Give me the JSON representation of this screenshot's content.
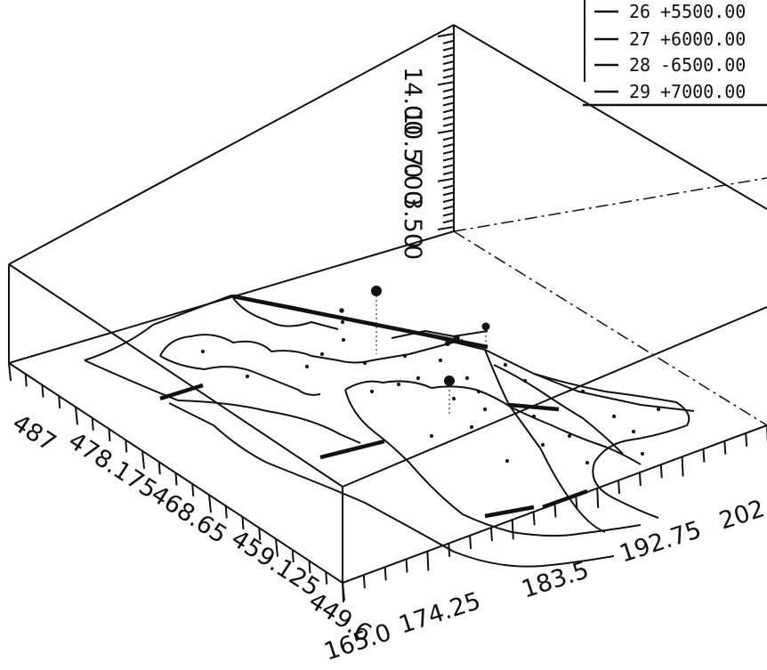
{
  "chart_data": {
    "type": "scatter",
    "title": "",
    "xlabel": "",
    "ylabel": "",
    "zlabel": "",
    "x_ticks": [
      "487",
      "478.175",
      "468.65",
      "459.125",
      "449.6"
    ],
    "y_ticks": [
      "165.0",
      "174.25",
      "183.5",
      "192.75",
      "202"
    ],
    "z_ticks": [
      "14.00",
      "10.50",
      "7.00",
      "3.50",
      "0"
    ],
    "legend_position": "top-right",
    "legend": [
      {
        "index": "26",
        "value": "+5500.00"
      },
      {
        "index": "27",
        "value": "+6000.00"
      },
      {
        "index": "28",
        "value": "-6500.00"
      },
      {
        "index": "29",
        "value": "+7000.00"
      }
    ],
    "grid": false,
    "colors": {
      "ink": "#111111",
      "background": "#ffffff"
    }
  }
}
